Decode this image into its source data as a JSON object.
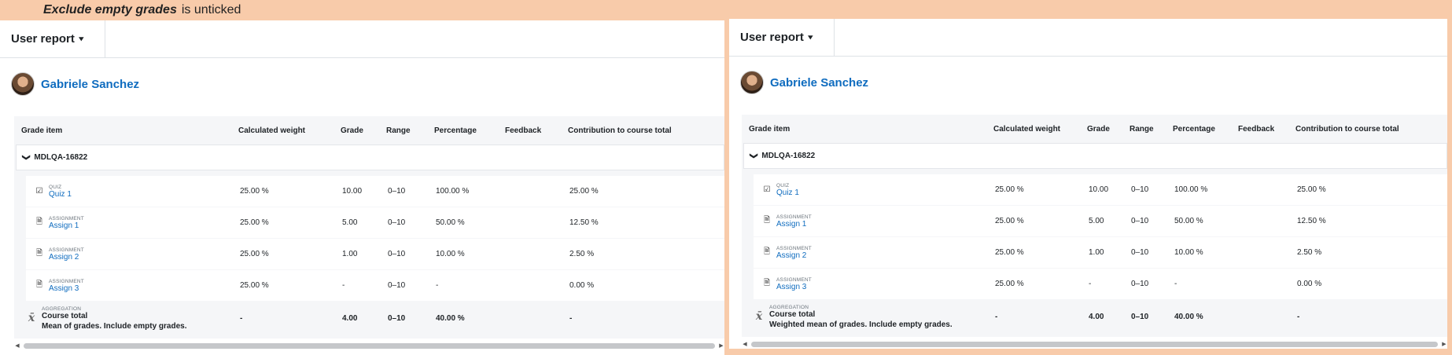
{
  "caption": {
    "setting": "Exclude empty grades",
    "state": "is unticked"
  },
  "panels": [
    {
      "report_label": "User report",
      "user_name": "Gabriele Sanchez",
      "headers": {
        "item": "Grade item",
        "weight": "Calculated weight",
        "grade": "Grade",
        "range": "Range",
        "percentage": "Percentage",
        "feedback": "Feedback",
        "contribution": "Contribution to course total"
      },
      "category": "MDLQA-16822",
      "rows": [
        {
          "type": "QUIZ",
          "name": "Quiz 1",
          "icon": "quiz-icon",
          "weight": "25.00 %",
          "grade": "10.00",
          "range": "0–10",
          "percentage": "100.00 %",
          "feedback": "",
          "contribution": "25.00 %"
        },
        {
          "type": "ASSIGNMENT",
          "name": "Assign 1",
          "icon": "assignment-icon",
          "weight": "25.00 %",
          "grade": "5.00",
          "range": "0–10",
          "percentage": "50.00 %",
          "feedback": "",
          "contribution": "12.50 %"
        },
        {
          "type": "ASSIGNMENT",
          "name": "Assign 2",
          "icon": "assignment-icon",
          "weight": "25.00 %",
          "grade": "1.00",
          "range": "0–10",
          "percentage": "10.00 %",
          "feedback": "",
          "contribution": "2.50 %"
        },
        {
          "type": "ASSIGNMENT",
          "name": "Assign 3",
          "icon": "assignment-icon",
          "weight": "25.00 %",
          "grade": "-",
          "range": "0–10",
          "percentage": "-",
          "feedback": "",
          "contribution": "0.00 %"
        }
      ],
      "total": {
        "type": "AGGREGATION",
        "name": "Course total",
        "description": "Mean of grades. Include empty grades.",
        "weight": "-",
        "grade": "4.00",
        "range": "0–10",
        "percentage": "40.00 %",
        "contribution": "-"
      }
    },
    {
      "report_label": "User report",
      "user_name": "Gabriele Sanchez",
      "headers": {
        "item": "Grade item",
        "weight": "Calculated weight",
        "grade": "Grade",
        "range": "Range",
        "percentage": "Percentage",
        "feedback": "Feedback",
        "contribution": "Contribution to course total"
      },
      "category": "MDLQA-16822",
      "rows": [
        {
          "type": "QUIZ",
          "name": "Quiz 1",
          "icon": "quiz-icon",
          "weight": "25.00 %",
          "grade": "10.00",
          "range": "0–10",
          "percentage": "100.00 %",
          "feedback": "",
          "contribution": "25.00 %"
        },
        {
          "type": "ASSIGNMENT",
          "name": "Assign 1",
          "icon": "assignment-icon",
          "weight": "25.00 %",
          "grade": "5.00",
          "range": "0–10",
          "percentage": "50.00 %",
          "feedback": "",
          "contribution": "12.50 %"
        },
        {
          "type": "ASSIGNMENT",
          "name": "Assign 2",
          "icon": "assignment-icon",
          "weight": "25.00 %",
          "grade": "1.00",
          "range": "0–10",
          "percentage": "10.00 %",
          "feedback": "",
          "contribution": "2.50 %"
        },
        {
          "type": "ASSIGNMENT",
          "name": "Assign 3",
          "icon": "assignment-icon",
          "weight": "25.00 %",
          "grade": "-",
          "range": "0–10",
          "percentage": "-",
          "feedback": "",
          "contribution": "0.00 %"
        }
      ],
      "total": {
        "type": "AGGREGATION",
        "name": "Course total",
        "description": "Weighted mean of grades. Include empty grades.",
        "weight": "-",
        "grade": "4.00",
        "range": "0–10",
        "percentage": "40.00 %",
        "contribution": "-"
      }
    }
  ]
}
